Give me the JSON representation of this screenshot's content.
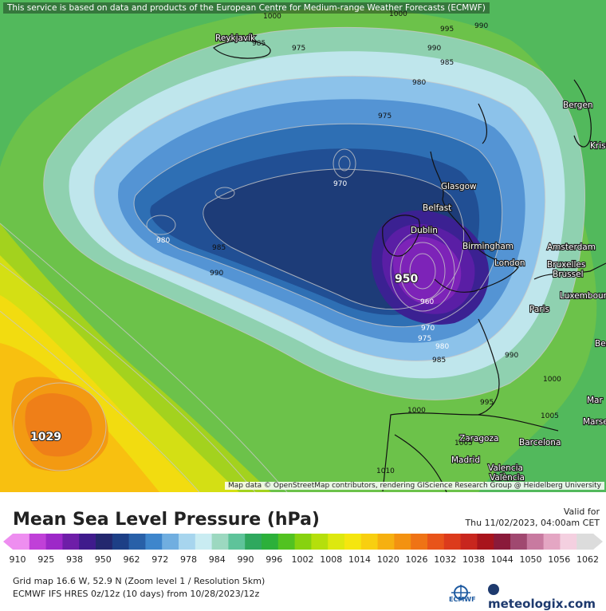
{
  "map": {
    "notice": "This service is based on data and products of the European Centre for Medium-range Weather Forecasts (ECMWF)",
    "attribution": "Map data © OpenStreetMap contributors, rendering GIScience Research Group @ Heidelberg University",
    "cities": [
      "Reykjavík",
      "Bergen",
      "Krist",
      "Glasgow",
      "Belfast",
      "Dublin",
      "Birmingham",
      "London",
      "Amsterdam",
      "Bruxelles",
      "Brussel",
      "Luxembourg",
      "Paris",
      "Zaragoza",
      "Barcelona",
      "Madrid",
      "Valencia",
      "València",
      "Mar",
      "Marse",
      "Be"
    ],
    "isobar_labels": [
      "1000",
      "995",
      "990",
      "985",
      "980",
      "975",
      "970",
      "975",
      "985",
      "990",
      "980",
      "985",
      "990",
      "975",
      "970",
      "960",
      "980",
      "985",
      "990",
      "1000",
      "995",
      "1000",
      "1005",
      "1005",
      "1010",
      "1000"
    ],
    "highs_lows": {
      "low_center": "950",
      "high_center": "1029"
    }
  },
  "legend": {
    "title": "Mean Sea Level Pressure (hPa)",
    "valid_label": "Valid for",
    "valid_time": "Thu 11/02/2023, 04:00am CET",
    "ticks": [
      "910",
      "925",
      "938",
      "950",
      "962",
      "972",
      "978",
      "984",
      "990",
      "996",
      "1002",
      "1008",
      "1014",
      "1020",
      "1026",
      "1032",
      "1038",
      "1044",
      "1050",
      "1056",
      "1062"
    ],
    "scale_colors": [
      "#ee8ef0",
      "#c040d8",
      "#9d28c8",
      "#6e1ea8",
      "#3f1b8c",
      "#23276e",
      "#1d3f86",
      "#2860a8",
      "#3e86cc",
      "#70aee0",
      "#a7d5ee",
      "#c9ecf2",
      "#9cd8c0",
      "#5ec39a",
      "#2fa85e",
      "#2cb03a",
      "#52c221",
      "#87d20f",
      "#b5df0c",
      "#dde80f",
      "#f5e60f",
      "#f8cf10",
      "#f6b010",
      "#f39211",
      "#ef7315",
      "#e8541a",
      "#dc3b1c",
      "#c8261e",
      "#a8141c",
      "#8a1a3a",
      "#a04870",
      "#c87aa0",
      "#e4a6c3",
      "#f4d0e0",
      "#dcdcdc"
    ]
  },
  "meta": {
    "grid": "Grid map 16.6 W, 52.9 N (Zoom level 1 / Resolution 5km)",
    "model": "ECMWF IFS HRES 0z/12z (10 days)  from  10/28/2023/12z",
    "ecmwf_label": "ECMWF",
    "brand": "meteologix.com"
  }
}
